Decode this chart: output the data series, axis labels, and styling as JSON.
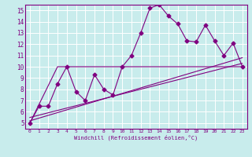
{
  "title": "",
  "xlabel": "Windchill (Refroidissement éolien,°C)",
  "ylabel": "",
  "bg_color": "#c8ecec",
  "line_color": "#800080",
  "grid_color": "#ffffff",
  "xlim": [
    -0.5,
    23.5
  ],
  "ylim": [
    4.5,
    15.5
  ],
  "xticks": [
    0,
    1,
    2,
    3,
    4,
    5,
    6,
    7,
    8,
    9,
    10,
    11,
    12,
    13,
    14,
    15,
    16,
    17,
    18,
    19,
    20,
    21,
    22,
    23
  ],
  "yticks": [
    5,
    6,
    7,
    8,
    9,
    10,
    11,
    12,
    13,
    14,
    15
  ],
  "series1_x": [
    0,
    1,
    2,
    3,
    4,
    5,
    6,
    7,
    8,
    9,
    10,
    11,
    12,
    13,
    14,
    15,
    16,
    17,
    18,
    19,
    20,
    21,
    22,
    23
  ],
  "series1_y": [
    5.0,
    6.5,
    6.5,
    8.5,
    10.0,
    7.8,
    7.0,
    9.3,
    8.0,
    7.5,
    10.0,
    11.0,
    13.0,
    15.2,
    15.5,
    14.5,
    13.8,
    12.3,
    12.2,
    13.7,
    12.3,
    11.0,
    12.1,
    10.0
  ],
  "series2_x": [
    0,
    3,
    23
  ],
  "series2_y": [
    5.0,
    10.0,
    10.0
  ],
  "series3_x": [
    0,
    23
  ],
  "series3_y": [
    5.5,
    10.3
  ],
  "series4_x": [
    0,
    23
  ],
  "series4_y": [
    5.2,
    10.8
  ],
  "marker": "D",
  "markersize": 2.5,
  "linewidth": 0.8
}
